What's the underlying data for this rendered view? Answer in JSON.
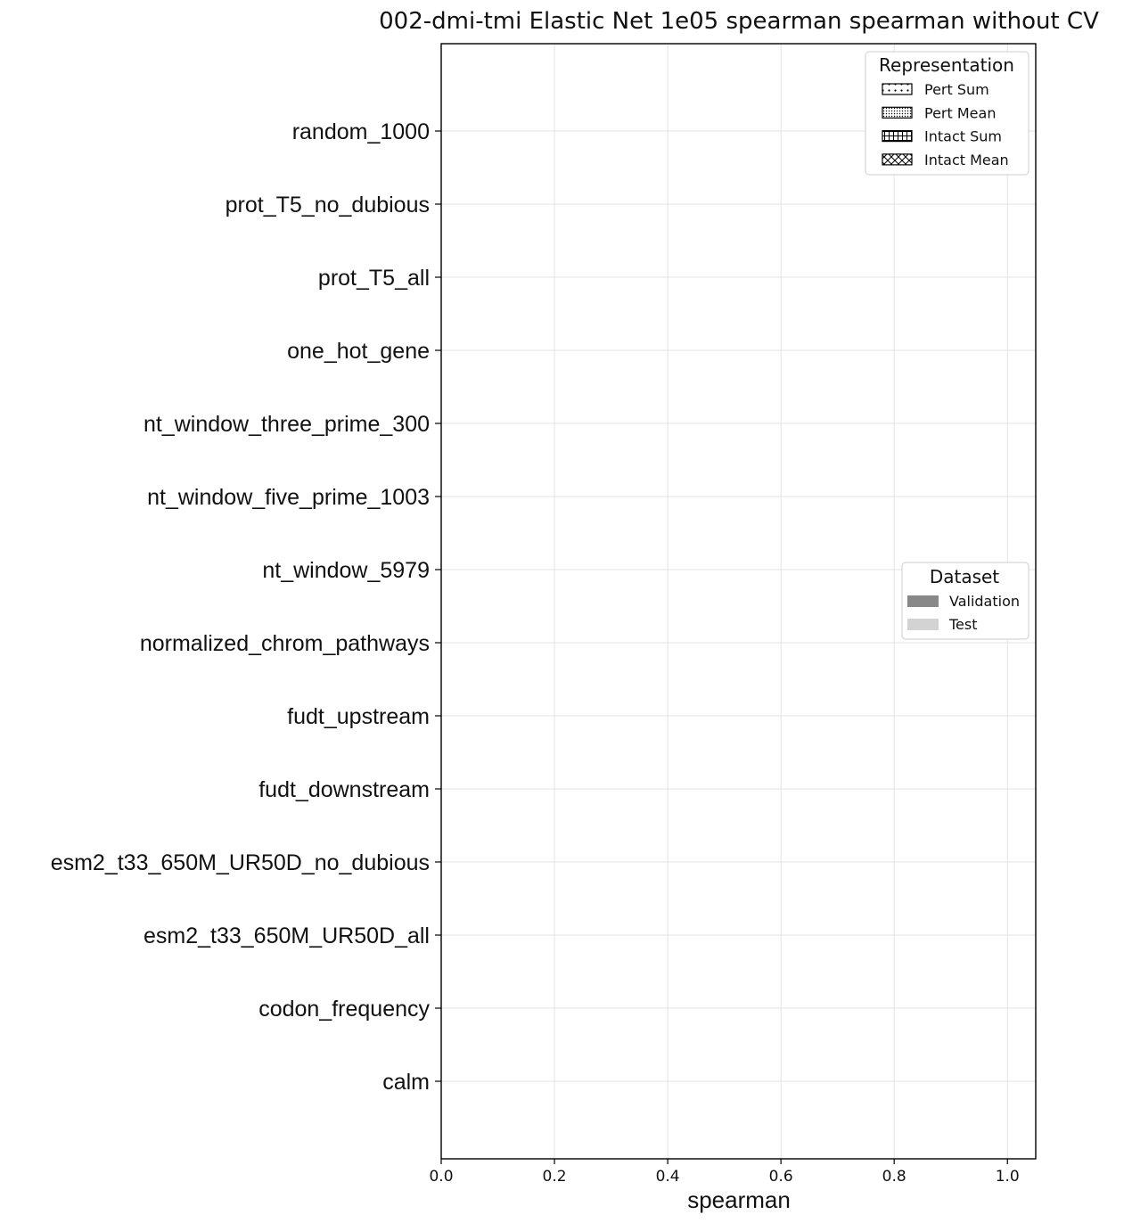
{
  "chart_data": {
    "type": "bar",
    "orientation": "horizontal",
    "title": "002-dmi-tmi Elastic Net 1e05 spearman spearman without CV",
    "xlabel": "spearman",
    "ylabel": "",
    "xlim": [
      0,
      1.05
    ],
    "xticks": [
      "0.0",
      "0.2",
      "0.4",
      "0.6",
      "0.8",
      "1.0"
    ],
    "xtick_values": [
      0,
      0.2,
      0.4,
      0.6,
      0.8,
      1.0
    ],
    "grid": true,
    "categories": [
      "random_1000",
      "prot_T5_no_dubious",
      "prot_T5_all",
      "one_hot_gene",
      "nt_window_three_prime_300",
      "nt_window_five_prime_1003",
      "nt_window_5979",
      "normalized_chrom_pathways",
      "fudt_upstream",
      "fudt_downstream",
      "esm2_t33_650M_UR50D_no_dubious",
      "esm2_t33_650M_UR50D_all",
      "codon_frequency",
      "calm"
    ],
    "series": [],
    "legends": [
      {
        "title": "Representation",
        "placement": "top-right",
        "entries": [
          {
            "label": "Pert Sum",
            "pattern": "dots-sparse"
          },
          {
            "label": "Pert Mean",
            "pattern": "dots-dense"
          },
          {
            "label": "Intact Sum",
            "pattern": "grid"
          },
          {
            "label": "Intact Mean",
            "pattern": "cross"
          }
        ]
      },
      {
        "title": "Dataset",
        "placement": "center-right",
        "entries": [
          {
            "label": "Validation",
            "color": "#888888"
          },
          {
            "label": "Test",
            "color": "#d3d3d3"
          }
        ]
      }
    ]
  }
}
